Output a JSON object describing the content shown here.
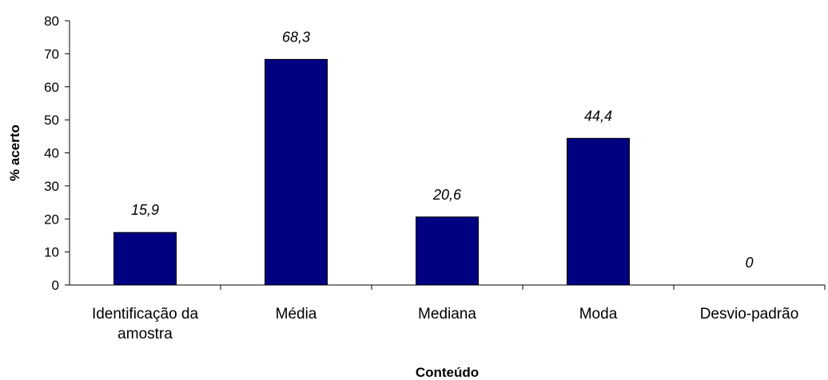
{
  "chart_data": {
    "type": "bar",
    "categories": [
      "Identificação da amostra",
      "Média",
      "Mediana",
      "Moda",
      "Desvio-padrão"
    ],
    "category_lines": [
      [
        "Identificação da",
        "amostra"
      ],
      [
        "Média"
      ],
      [
        "Mediana"
      ],
      [
        "Moda"
      ],
      [
        "Desvio-padrão"
      ]
    ],
    "values": [
      15.9,
      68.3,
      20.6,
      44.4,
      0
    ],
    "data_labels": [
      "15,9",
      "68,3",
      "20,6",
      "44,4",
      "0"
    ],
    "yticks": [
      0,
      10,
      20,
      30,
      40,
      50,
      60,
      70,
      80
    ],
    "ylim": [
      0,
      80
    ],
    "xlabel": "Conteúdo",
    "ylabel": "% acerto",
    "grid": false,
    "bar_color": "#000080"
  }
}
